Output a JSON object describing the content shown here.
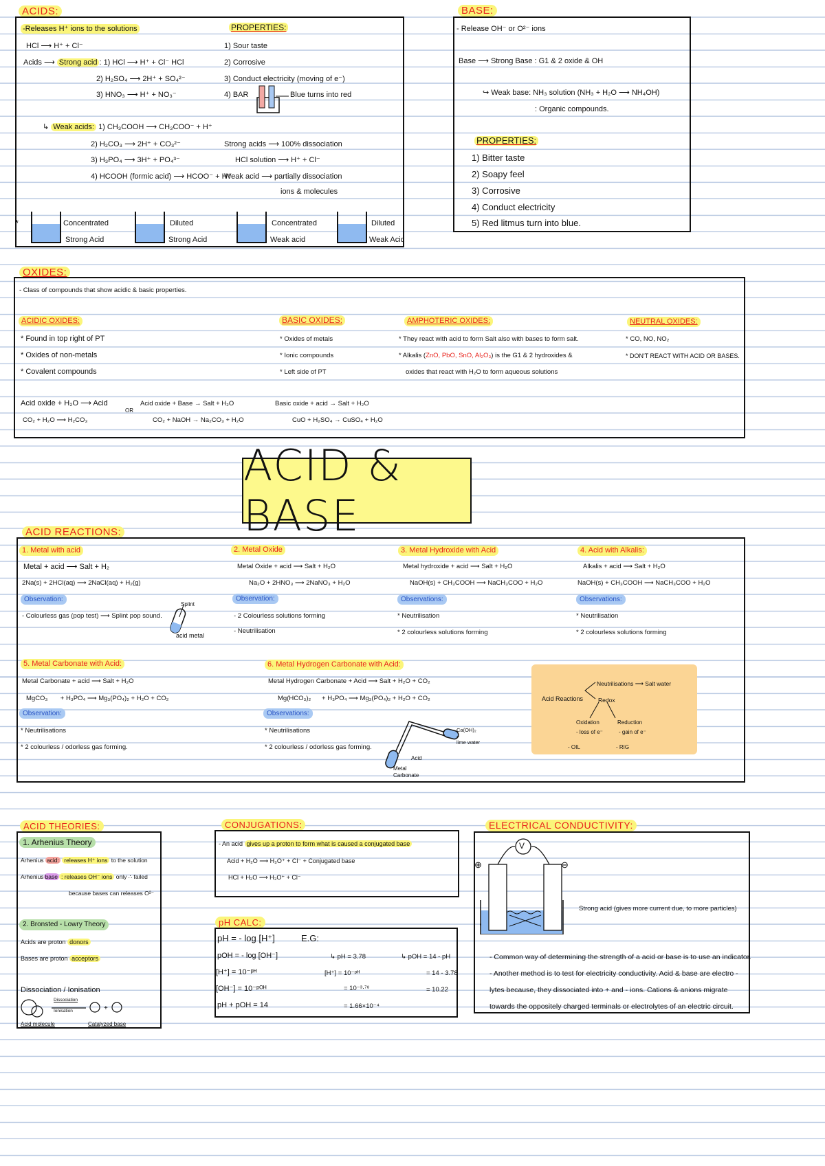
{
  "acids": {
    "heading": "ACIDS:",
    "releases": "-Releases H⁺ ions to the solutions",
    "hcl": "HCl ⟶ H⁺ + Cl⁻",
    "acids_arrow": "Acids ⟶",
    "strong_acid": "Strong acid",
    "strong_1": ": 1) HCl ⟶ H⁺ + Cl⁻      HCl",
    "strong_2": "2) H₂SO₄ ⟶ 2H⁺ + SO₄²⁻",
    "strong_3": "3) HNO₃ ⟶ H⁺ + NO₃⁻",
    "weak_arrow": "↳",
    "weak_acids": "Weak acids:",
    "weak_1": "1) CH₃COOH ⟶ CH₃COO⁻ + H⁺",
    "weak_2": "2) H₂CO₃ ⟶ 2H⁺ + CO₃²⁻",
    "weak_3": "3) H₃PO₄ ⟶ 3H⁺ + PO₄³⁻",
    "weak_4": "4) HCOOH (formic acid) ⟶ HCOO⁻ + H⁺",
    "properties_heading": "PROPERTIES:",
    "properties": [
      "1) Sour taste",
      "2) Corrosive",
      "3) Conduct electricity (moving of e⁻)",
      "4) BAR"
    ],
    "litmus_label": "Blue turns into red",
    "strong_dissoc": "Strong acids ⟶ 100% dissociation",
    "hcl_solution": "HCl solution ⟶ H⁺ + Cl⁻",
    "weak_dissoc": "Weak acid ⟶ partially dissociation",
    "ions_molecules": "ions & molecules",
    "star": "*",
    "beakers": [
      {
        "l1": "Concentrated",
        "l2": "Strong Acid"
      },
      {
        "l1": "Diluted",
        "l2": "Strong Acid"
      },
      {
        "l1": "Concentrated",
        "l2": "Weak acid"
      },
      {
        "l1": "Diluted",
        "l2": "Weak Acid"
      }
    ]
  },
  "base": {
    "heading": "BASE:",
    "release": "- Release OH⁻ or O²⁻ ions",
    "strong": "Base ⟶ Strong Base : G1 & 2 oxide & OH",
    "weak": "↪ Weak base: NH₃ solution (NH₃ + H₂O ⟶ NH₄OH)",
    "organic": ": Organic compounds.",
    "properties_heading": "PROPERTIES:",
    "properties": [
      "1) Bitter taste",
      "2) Soapy feel",
      "3) Corrosive",
      "4) Conduct electricity",
      "5) Red litmus turn into blue."
    ]
  },
  "oxides": {
    "heading": "OXIDES:",
    "intro": "- Class of compounds that show acidic & basic properties.",
    "acidic": {
      "heading": "ACIDIC OXIDES:",
      "items": [
        "* Found in top right of PT",
        "* Oxides of non-metals",
        "* Covalent compounds"
      ]
    },
    "basic": {
      "heading": "BASIC OXIDES:",
      "items": [
        "* Oxides of metals",
        "* Ionic compounds",
        "* Left side of PT"
      ]
    },
    "amphoteric": {
      "heading": "AMPHOTERIC OXIDES:",
      "item1": "* They react with acid to form Salt also with bases to form salt.",
      "item2a": "* Alkalis (",
      "item2_red": "ZnO, PbO, SnO, Al₂O₃",
      "item2b": ") is the G1 & 2 hydroxides &",
      "item3": "oxides that react with H₂O to form aqueous solutions"
    },
    "neutral": {
      "heading": "NEUTRAL OXIDES:",
      "items": [
        "* CO, NO, NO₂",
        "* DON'T REACT WITH ACID OR BASES."
      ]
    },
    "eq": {
      "a1": "Acid oxide + H₂O ⟶ Acid",
      "a2": "CO₂ + H₂O ⟶ H₂CO₃",
      "or": "OR",
      "b1": "Acid oxide + Base → Salt + H₂O",
      "b2": "CO₂ + NaOH → Na₂CO₃ + H₂O",
      "c1": "Basic oxide + acid → Salt + H₂O",
      "c2": "CuO + H₂SO₄ → CuSO₄ + H₂O"
    }
  },
  "title": "ACID & BASE",
  "reactions": {
    "heading": "ACID REACTIONS:",
    "r1": {
      "title": "1. Metal with acid",
      "eq1": "Metal + acid ⟶ Salt + H₂",
      "eq2": "2Na(s) + 2HCl(aq) ⟶ 2NaCl(aq) + H₂(g)",
      "obs": "Observation:",
      "items": [
        "- Colourless gas (pop test) ⟶ Splint pop sound."
      ],
      "splint": "Splint",
      "acid_metal": "acid metal"
    },
    "r2": {
      "title": "2. Metal Oxide",
      "eq1": "Metal Oxide + acid ⟶ Salt + H₂O",
      "eq2": "Na₂O + 2HNO₃ ⟶ 2NaNO₃ + H₂O",
      "obs": "Observation:",
      "items": [
        "- 2 Colourless solutions forming",
        "- Neutrilisation"
      ]
    },
    "r3": {
      "title": "3. Metal Hydroxide with Acid",
      "eq1": "Metal hydroxide + acid ⟶ Salt + H₂O",
      "eq2": "NaOH(s) + CH₃COOH ⟶ NaCH₃COO + H₂O",
      "obs": "Observations:",
      "items": [
        "* Neutrilisation",
        "* 2 colourless solutions forming"
      ]
    },
    "r4": {
      "title": "4. Acid with Alkalis:",
      "eq1": "Alkalis + acid ⟶ Salt + H₂O",
      "eq2": "NaOH(s) + CH₃COOH ⟶ NaCH₃COO + H₂O",
      "obs": "Observations:",
      "items": [
        "* Neutrilisation",
        "* 2 colourless solutions forming"
      ]
    },
    "r5": {
      "title": "5. Metal Carbonate with Acid:",
      "eq1": "Metal Carbonate + acid ⟶ Salt + H₂O",
      "eq2": "MgCO₃       + H₃PO₄ ⟶ Mg₃(PO₄)₂ + H₂O + CO₂",
      "obs": "Observation:",
      "items": [
        "* Neutrilisations",
        "* 2 colourless / odorless gas forming."
      ]
    },
    "r6": {
      "title": "6. Metal Hydrogen Carbonate with Acid:",
      "eq1": "Metal Hydrogen Carbonate + Acid ⟶ Salt + H₂O + CO₂",
      "eq2": "Mg(HCO₃)₂      + H₃PO₄ ⟶ Mg₃(PO₄)₂ + H₂O + CO₂",
      "obs": "Observations:",
      "items": [
        "* Neutrilisations",
        "* 2 colourless / odorless gas forming."
      ]
    },
    "apparatus": {
      "limewater1": "Ca(OH)₂",
      "limewater2": "+",
      "limewater3": "lime water",
      "acid": "Acid",
      "carbonate1": "Metal",
      "carbonate2": "Carbonate"
    },
    "summary": {
      "neutral": "Neutrilisations ⟶ Salt water",
      "acid_reactions": "Acid Reactions",
      "redox": "Redox",
      "oxidation": "Oxidation",
      "reduction": "Reduction",
      "loss": "- loss of e⁻",
      "gain": "- gain of e⁻",
      "oil": "- OIL",
      "rig": "- RIG",
      "color": "#fbd595"
    }
  },
  "theories": {
    "heading": "ACID THEORIES:",
    "t1": "1. Arhenius Theory",
    "acid_pre": "Arhenius",
    "acid_word": "acid:",
    "acid_hl": "releases H⁺ ions",
    "acid_post": "to the solution",
    "base_pre": "Arhenius",
    "base_word": "base",
    "base_hl": ": releases OH⁻ ions",
    "base_post": "only ∴ failed",
    "because": "because bases can releases O²⁻",
    "t2": "2. Bronsted - Lowry Theory",
    "donors_pre": "Acids are proton",
    "donors": "donors",
    "acceptors_pre": "Bases are proton",
    "acceptors": "acceptors",
    "dissoc": "Dissociation / Ionisation",
    "d_small1": "Dissociation",
    "d_small2": "Ionisation",
    "acid_molecule": "Acid molecule",
    "catalyzed_base": "Catalyzed base"
  },
  "conjugations": {
    "heading": "CONJUGATIONS:",
    "intro_pre": "- An acid",
    "intro_hl": "gives up a proton to form what is caused a conjugated base",
    "eq1": "Acid + H₂O ⟶ H₃O⁺ + Cl⁻ + Conjugated base",
    "eq2": "HCl + H₂O ⟶ H₃O⁺ + Cl⁻"
  },
  "ph": {
    "heading": "pH CALC:",
    "f1": "pH = - log [H⁺]",
    "f2": "pOH = - log [OH⁻]",
    "f3": "[H⁺] = 10⁻ᵖᴴ",
    "f4": "[OH⁻] = 10⁻ᵖᴼᴴ",
    "f5": "pH + pOH = 14",
    "eg": "E.G:",
    "e1": "↳ pH = 3.78",
    "e2": "[H⁺] = 10⁻ᵖᴴ",
    "e3": "= 10⁻³·⁷⁸",
    "e4": "= 1.66×10⁻⁴",
    "p1": "↳ pOH = 14 - pH",
    "p2": "= 14 - 3.78",
    "p3": "= 10.22"
  },
  "conductivity": {
    "heading": "ELECTRICAL CONDUCTIVITY:",
    "voltmeter": "V",
    "plus": "⊕",
    "minus": "⊖",
    "strong_acid": "Strong acid (gives more current due, to more particles)",
    "lines": [
      "- Common way of determining the strength of a acid or base is to use an indicator.",
      "- Another method is to test for electricity conductivity. Acid & base are electro -",
      "lytes because, they dissociated into + and - ions. Cations & anions migrate",
      "towards the oppositely charged terminals or electrolytes of an electric circuit."
    ]
  }
}
